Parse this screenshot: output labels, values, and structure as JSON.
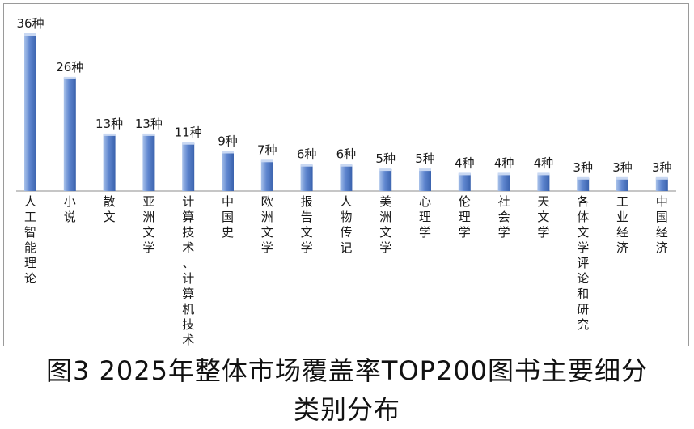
{
  "caption": {
    "line1": "图3  2025年整体市场覆盖率TOP200图书主要细分",
    "line2": "类别分布"
  },
  "colors": {
    "bar_light": "#a9c2ea",
    "bar_main": "#5f86cf",
    "bar_dark": "#3a62ad",
    "axis": "#8c8c8c"
  },
  "chart_data": {
    "type": "bar",
    "title": "",
    "xlabel": "",
    "ylabel": "",
    "ylim": [
      0,
      36
    ],
    "unit_suffix": "种",
    "categories": [
      "人工智能理论",
      "小说",
      "散文",
      "亚洲文学",
      "计算技术、计算机技术",
      "中国史",
      "欧洲文学",
      "报告文学",
      "人物传记",
      "美洲文学",
      "心理学",
      "伦理学",
      "社会学",
      "天文学",
      "各体文学评论和研究",
      "工业经济",
      "中国经济"
    ],
    "values": [
      36,
      26,
      13,
      13,
      11,
      9,
      7,
      6,
      6,
      5,
      5,
      4,
      4,
      4,
      3,
      3,
      3
    ],
    "value_labels": [
      "36种",
      "26种",
      "13种",
      "13种",
      "11种",
      "9种",
      "7种",
      "6种",
      "6种",
      "5种",
      "5种",
      "4种",
      "4种",
      "4种",
      "3种",
      "3种",
      "3种"
    ],
    "grid": false,
    "legend": "none"
  }
}
